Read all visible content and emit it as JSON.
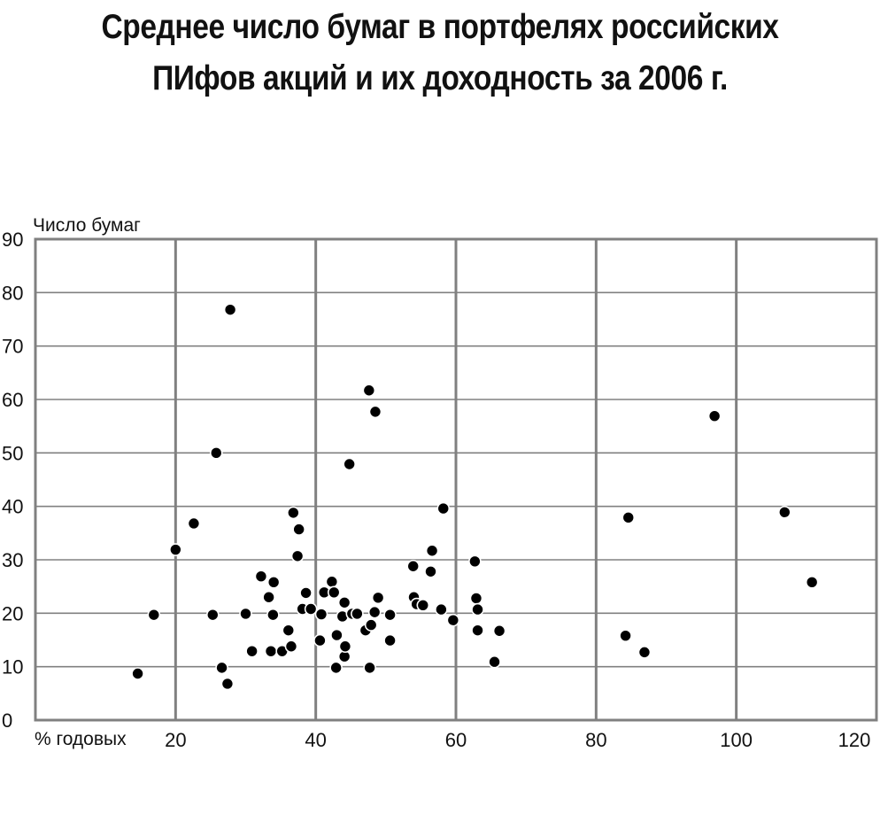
{
  "chart_data": {
    "type": "scatter",
    "title_line1": "Среднее число бумаг в портфелях российских",
    "title_line2": "ПИфов акций и их доходность за 2006 г.",
    "xlabel": "% годовых",
    "ylabel": "Число бумаг",
    "xlim": [
      0,
      120
    ],
    "ylim": [
      0,
      90
    ],
    "x_ticks": [
      "20",
      "40",
      "60",
      "80",
      "100",
      "120"
    ],
    "y_ticks": [
      "0",
      "10",
      "20",
      "30",
      "40",
      "50",
      "60",
      "70",
      "80",
      "90"
    ],
    "grid": true,
    "points": [
      {
        "x": 14.6,
        "y": 8.7
      },
      {
        "x": 16.9,
        "y": 19.7
      },
      {
        "x": 20.0,
        "y": 31.9
      },
      {
        "x": 22.6,
        "y": 36.8
      },
      {
        "x": 25.3,
        "y": 19.7
      },
      {
        "x": 25.8,
        "y": 50.0
      },
      {
        "x": 26.6,
        "y": 9.8
      },
      {
        "x": 27.4,
        "y": 6.8
      },
      {
        "x": 27.8,
        "y": 76.8
      },
      {
        "x": 30.0,
        "y": 19.9
      },
      {
        "x": 30.9,
        "y": 12.9
      },
      {
        "x": 32.2,
        "y": 26.9
      },
      {
        "x": 33.3,
        "y": 23.0
      },
      {
        "x": 33.6,
        "y": 12.9
      },
      {
        "x": 33.9,
        "y": 19.7
      },
      {
        "x": 34.0,
        "y": 25.8
      },
      {
        "x": 35.2,
        "y": 12.9
      },
      {
        "x": 36.1,
        "y": 16.8
      },
      {
        "x": 36.5,
        "y": 13.8
      },
      {
        "x": 36.8,
        "y": 38.8
      },
      {
        "x": 37.4,
        "y": 30.7
      },
      {
        "x": 37.6,
        "y": 35.7
      },
      {
        "x": 38.1,
        "y": 20.8
      },
      {
        "x": 38.6,
        "y": 23.8
      },
      {
        "x": 39.3,
        "y": 20.8
      },
      {
        "x": 40.6,
        "y": 14.9
      },
      {
        "x": 40.8,
        "y": 19.8
      },
      {
        "x": 41.2,
        "y": 23.9
      },
      {
        "x": 42.3,
        "y": 25.9
      },
      {
        "x": 42.6,
        "y": 23.9
      },
      {
        "x": 42.9,
        "y": 9.8
      },
      {
        "x": 43.0,
        "y": 15.9
      },
      {
        "x": 43.8,
        "y": 19.4
      },
      {
        "x": 44.1,
        "y": 22.0
      },
      {
        "x": 44.1,
        "y": 11.9
      },
      {
        "x": 44.2,
        "y": 13.8
      },
      {
        "x": 44.8,
        "y": 47.9
      },
      {
        "x": 45.2,
        "y": 19.9
      },
      {
        "x": 45.9,
        "y": 19.9
      },
      {
        "x": 47.1,
        "y": 16.8
      },
      {
        "x": 47.6,
        "y": 61.7
      },
      {
        "x": 47.7,
        "y": 9.8
      },
      {
        "x": 47.9,
        "y": 17.8
      },
      {
        "x": 48.4,
        "y": 20.2
      },
      {
        "x": 48.5,
        "y": 57.7
      },
      {
        "x": 48.9,
        "y": 22.9
      },
      {
        "x": 50.6,
        "y": 19.7
      },
      {
        "x": 50.6,
        "y": 14.9
      },
      {
        "x": 53.9,
        "y": 28.8
      },
      {
        "x": 54.0,
        "y": 23.0
      },
      {
        "x": 54.4,
        "y": 21.7
      },
      {
        "x": 55.3,
        "y": 21.5
      },
      {
        "x": 56.4,
        "y": 27.8
      },
      {
        "x": 56.6,
        "y": 31.7
      },
      {
        "x": 57.9,
        "y": 20.7
      },
      {
        "x": 58.2,
        "y": 39.6
      },
      {
        "x": 59.6,
        "y": 18.7
      },
      {
        "x": 62.7,
        "y": 29.7
      },
      {
        "x": 62.9,
        "y": 22.8
      },
      {
        "x": 63.1,
        "y": 20.7
      },
      {
        "x": 63.1,
        "y": 16.8
      },
      {
        "x": 65.5,
        "y": 10.9
      },
      {
        "x": 66.2,
        "y": 16.7
      },
      {
        "x": 84.2,
        "y": 15.8
      },
      {
        "x": 84.6,
        "y": 37.9
      },
      {
        "x": 86.9,
        "y": 12.7
      },
      {
        "x": 96.9,
        "y": 56.9
      },
      {
        "x": 106.9,
        "y": 38.9
      },
      {
        "x": 110.8,
        "y": 25.8
      }
    ]
  }
}
